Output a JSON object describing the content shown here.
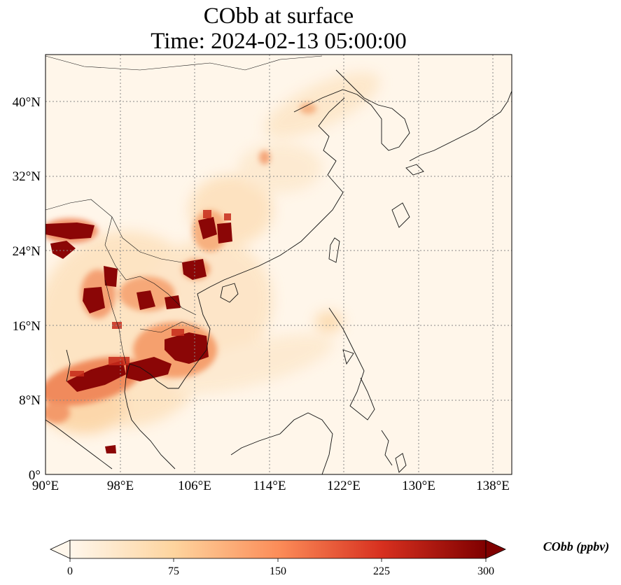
{
  "title": {
    "line1": "CObb at surface",
    "line2": "Time: 2024-02-13 05:00:00"
  },
  "map": {
    "region": "East and Southeast Asia",
    "lon_range": [
      90,
      140
    ],
    "lat_range": [
      0,
      45
    ],
    "x_ticks": [
      "90°E",
      "98°E",
      "106°E",
      "114°E",
      "122°E",
      "130°E",
      "138°E"
    ],
    "y_ticks": [
      "0°",
      "8°N",
      "16°N",
      "24°N",
      "32°N",
      "40°N"
    ],
    "gridlines": "dotted"
  },
  "colorbar": {
    "label": "CObb (ppbv)",
    "ticks": [
      "0",
      "75",
      "150",
      "225",
      "300"
    ],
    "range": [
      0,
      300
    ],
    "colormap": "OrRd",
    "extend": "both",
    "colors": [
      "#fff7ec",
      "#fdd49e",
      "#fc8d59",
      "#d7301f",
      "#7f0000"
    ]
  }
}
